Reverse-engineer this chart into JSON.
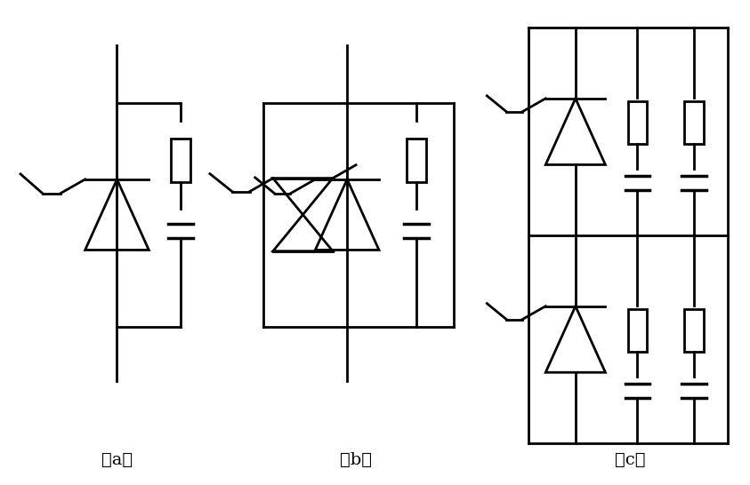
{
  "labels": [
    "（a）",
    "（b）",
    "（c）"
  ],
  "background_color": "#ffffff",
  "line_color": "#000000",
  "line_width": 2.0,
  "fig_width": 8.43,
  "fig_height": 5.46
}
